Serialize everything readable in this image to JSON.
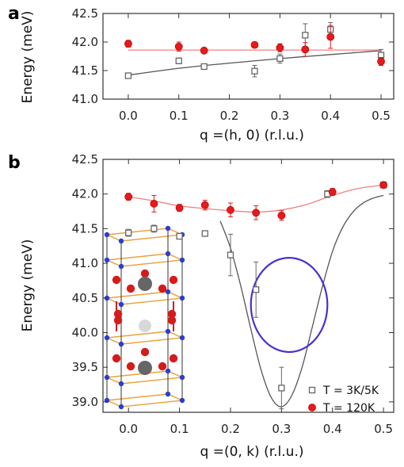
{
  "chart_data": [
    {
      "panel": "a",
      "type": "scatter",
      "xlabel": "q =(h, 0)  (r.l.u.)",
      "ylabel": "Energy (meV)",
      "xlim": [
        -0.05,
        0.525
      ],
      "ylim": [
        41.0,
        42.5
      ],
      "xticks": [
        0.0,
        0.1,
        0.2,
        0.3,
        0.4,
        0.5
      ],
      "xtick_labels": [
        "0.0",
        "0.1",
        "0.2",
        "0.3",
        "0.4",
        "0.5"
      ],
      "yticks": [
        41.0,
        41.5,
        42.0,
        42.5
      ],
      "ytick_labels": [
        "41.0",
        "41.5",
        "42.0",
        "42.5"
      ],
      "series": [
        {
          "name": "T = 3K/5K",
          "marker": "open-square",
          "color": "#666666",
          "x": [
            0.0,
            0.1,
            0.15,
            0.25,
            0.3,
            0.35,
            0.4,
            0.5
          ],
          "y": [
            41.41,
            41.67,
            41.57,
            41.49,
            41.71,
            42.12,
            42.22,
            41.77
          ],
          "err": [
            0.03,
            0.05,
            0.04,
            0.1,
            0.08,
            0.2,
            0.12,
            0.1
          ]
        },
        {
          "name": "T = 120K",
          "marker": "filled-circle",
          "color": "#e41a1c",
          "x": [
            0.0,
            0.1,
            0.15,
            0.25,
            0.3,
            0.35,
            0.4,
            0.5
          ],
          "y": [
            41.97,
            41.92,
            41.85,
            41.95,
            41.9,
            41.87,
            42.09,
            41.66
          ],
          "err": [
            0.06,
            0.08,
            0.04,
            0.05,
            0.07,
            0.12,
            0.2,
            0.07
          ]
        }
      ],
      "fits": [
        {
          "color": "#555555",
          "x": [
            0.0,
            0.1,
            0.2,
            0.3,
            0.4,
            0.5
          ],
          "y": [
            41.42,
            41.54,
            41.63,
            41.71,
            41.78,
            41.85
          ]
        },
        {
          "color": "#f08080",
          "x": [
            0.0,
            0.5
          ],
          "y": [
            41.86,
            41.86
          ]
        }
      ]
    },
    {
      "panel": "b",
      "type": "scatter",
      "xlabel": "q =(0, k) (r.l.u.)",
      "ylabel": "Energy (meV)",
      "xlim": [
        -0.05,
        0.52
      ],
      "ylim": [
        38.85,
        42.5
      ],
      "xticks": [
        0.0,
        0.1,
        0.2,
        0.3,
        0.4,
        0.5
      ],
      "xtick_labels": [
        "0.0",
        "0.1",
        "0.2",
        "0.3",
        "0.4",
        "0.5"
      ],
      "yticks": [
        39.0,
        39.5,
        40.0,
        40.5,
        41.0,
        41.5,
        42.0,
        42.5
      ],
      "ytick_labels": [
        "39.0",
        "39.5",
        "40.0",
        "40.5",
        "41.0",
        "41.5",
        "42.0",
        "42.5"
      ],
      "legend_position": "bottom-right",
      "legend": [
        "T = 3K/5K",
        "T = 120K"
      ],
      "series": [
        {
          "name": "T = 3K/5K",
          "marker": "open-square",
          "color": "#666666",
          "x": [
            0.0,
            0.05,
            0.1,
            0.15,
            0.2,
            0.25,
            0.3,
            0.39,
            0.5
          ],
          "y": [
            41.44,
            41.5,
            41.39,
            41.43,
            41.12,
            40.62,
            39.2,
            42.0,
            42.13
          ],
          "err": [
            0.05,
            0.05,
            0.04,
            0.04,
            0.3,
            0.4,
            0.3,
            0.05,
            0.04
          ]
        },
        {
          "name": "T = 120K",
          "marker": "filled-circle",
          "color": "#e41a1c",
          "x": [
            0.0,
            0.05,
            0.1,
            0.15,
            0.2,
            0.25,
            0.3,
            0.4,
            0.5
          ],
          "y": [
            41.96,
            41.86,
            41.8,
            41.84,
            41.77,
            41.73,
            41.69,
            42.03,
            42.13
          ],
          "err": [
            0.05,
            0.12,
            0.05,
            0.07,
            0.1,
            0.1,
            0.07,
            0.05,
            0.04
          ]
        }
      ],
      "fits": [
        {
          "color": "#555555",
          "x": [
            0.18,
            0.2,
            0.22,
            0.24,
            0.26,
            0.28,
            0.3,
            0.32,
            0.34,
            0.36,
            0.38,
            0.4,
            0.42,
            0.44,
            0.46,
            0.48,
            0.5
          ],
          "y": [
            41.61,
            41.22,
            40.68,
            40.05,
            39.46,
            39.06,
            38.93,
            39.09,
            39.49,
            40.07,
            40.66,
            41.17,
            41.52,
            41.74,
            41.87,
            41.94,
            41.98
          ]
        },
        {
          "color": "#f08080",
          "x": [
            0.0,
            0.05,
            0.1,
            0.15,
            0.2,
            0.25,
            0.3,
            0.35,
            0.4,
            0.45,
            0.5
          ],
          "y": [
            41.96,
            41.9,
            41.83,
            41.79,
            41.76,
            41.74,
            41.77,
            41.85,
            41.98,
            42.08,
            42.13
          ]
        }
      ],
      "ellipse": {
        "cx": 0.315,
        "cy": 40.4,
        "rx": 0.075,
        "ry": 0.68,
        "color": "#4a2fd1"
      }
    }
  ]
}
